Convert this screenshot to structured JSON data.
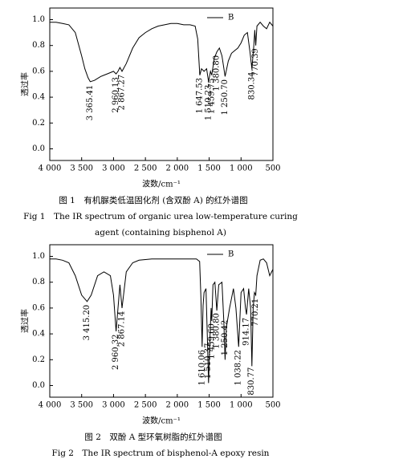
{
  "chart_data": [
    {
      "type": "line",
      "x_label": "波数/cm⁻¹",
      "y_label": "透过率",
      "caption": [
        "图 1　有机脲类低温固化剂 (含双酚 A) 的红外谱图",
        "Fig 1　The IR spectrum of organic urea low-temperature curing",
        "agent (containing bisphenol A)"
      ],
      "x": [
        4000,
        3900,
        3800,
        3700,
        3600,
        3500,
        3450,
        3400,
        3365,
        3300,
        3200,
        3100,
        3000,
        2960,
        2930,
        2900,
        2867,
        2800,
        2700,
        2600,
        2500,
        2400,
        2300,
        2200,
        2100,
        2000,
        1900,
        1800,
        1720,
        1680,
        1647,
        1620,
        1580,
        1540,
        1510,
        1480,
        1459,
        1420,
        1380,
        1340,
        1300,
        1250,
        1200,
        1150,
        1100,
        1050,
        1000,
        950,
        900,
        860,
        830,
        800,
        785,
        770,
        750,
        700,
        650,
        600,
        550,
        500
      ],
      "series": [
        {
          "name": "B",
          "color": "#000000",
          "values": [
            0.98,
            0.98,
            0.97,
            0.96,
            0.9,
            0.72,
            0.62,
            0.55,
            0.52,
            0.53,
            0.56,
            0.58,
            0.6,
            0.58,
            0.6,
            0.63,
            0.6,
            0.66,
            0.78,
            0.86,
            0.9,
            0.93,
            0.95,
            0.96,
            0.97,
            0.97,
            0.96,
            0.96,
            0.95,
            0.85,
            0.57,
            0.62,
            0.6,
            0.62,
            0.52,
            0.6,
            0.57,
            0.7,
            0.75,
            0.78,
            0.72,
            0.56,
            0.68,
            0.74,
            0.76,
            0.78,
            0.82,
            0.88,
            0.9,
            0.75,
            0.62,
            0.8,
            0.92,
            0.8,
            0.95,
            0.98,
            0.95,
            0.93,
            0.98,
            0.95
          ]
        }
      ],
      "annotations": [
        {
          "text": "3 365.41",
          "x": 3365.41
        },
        {
          "text": "2 960.13",
          "x": 2960.13
        },
        {
          "text": "2 867.27",
          "x": 2867.27
        },
        {
          "text": "1 647.53",
          "x": 1647.53
        },
        {
          "text": "1 510.23",
          "x": 1510.23
        },
        {
          "text": "1 459.75",
          "x": 1459.75
        },
        {
          "text": "1 380.80",
          "x": 1380.8
        },
        {
          "text": "1 250.70",
          "x": 1250.7
        },
        {
          "text": "830.34",
          "x": 830.34
        },
        {
          "text": "770.39",
          "x": 770.39
        }
      ],
      "xlim": [
        4000,
        500
      ],
      "xticks": [
        {
          "value": 4000,
          "label": "4 000"
        },
        {
          "value": 3500,
          "label": "3 500"
        },
        {
          "value": 3000,
          "label": "3 000"
        },
        {
          "value": 2500,
          "label": "2 500"
        },
        {
          "value": 2000,
          "label": "2 000"
        },
        {
          "value": 1500,
          "label": "1 500"
        },
        {
          "value": 1000,
          "label": "1 000"
        },
        500
      ],
      "ylim": [
        -0.09,
        1.09
      ],
      "yticks": [
        {
          "value": 0,
          "label": "0.0"
        },
        0.2,
        0.4,
        0.6,
        0.8,
        {
          "value": 1,
          "label": "1.0"
        }
      ],
      "legend": "upper right"
    },
    {
      "type": "line",
      "x_label": "波数/cm⁻¹",
      "y_label": "透过率",
      "caption": [
        "图 2　双酚 A 型环氧树脂的红外谱图",
        "Fig 2　The IR spectrum of bisphenol-A epoxy resin"
      ],
      "x": [
        4000,
        3900,
        3800,
        3700,
        3600,
        3500,
        3415,
        3350,
        3250,
        3150,
        3050,
        3000,
        2960,
        2930,
        2900,
        2867,
        2800,
        2700,
        2600,
        2400,
        2200,
        2000,
        1800,
        1700,
        1650,
        1630,
        1610,
        1595,
        1580,
        1550,
        1530,
        1510,
        1490,
        1470,
        1459,
        1440,
        1410,
        1380,
        1350,
        1300,
        1270,
        1250,
        1230,
        1180,
        1120,
        1080,
        1038,
        1000,
        960,
        930,
        914,
        880,
        850,
        830,
        810,
        790,
        770,
        750,
        700,
        650,
        600,
        550,
        500
      ],
      "series": [
        {
          "name": "B",
          "color": "#000000",
          "values": [
            0.98,
            0.98,
            0.97,
            0.95,
            0.85,
            0.7,
            0.65,
            0.7,
            0.85,
            0.88,
            0.85,
            0.7,
            0.42,
            0.6,
            0.78,
            0.6,
            0.88,
            0.95,
            0.97,
            0.98,
            0.98,
            0.98,
            0.98,
            0.98,
            0.96,
            0.7,
            0.3,
            0.62,
            0.72,
            0.75,
            0.4,
            0.02,
            0.35,
            0.6,
            0.5,
            0.78,
            0.8,
            0.58,
            0.78,
            0.8,
            0.5,
            0.2,
            0.45,
            0.6,
            0.75,
            0.6,
            0.3,
            0.72,
            0.75,
            0.6,
            0.55,
            0.75,
            0.6,
            0.15,
            0.6,
            0.72,
            0.7,
            0.85,
            0.97,
            0.98,
            0.95,
            0.85,
            0.9
          ]
        }
      ],
      "annotations": [
        {
          "text": "3 415.20",
          "x": 3415.2
        },
        {
          "text": "2 960.32",
          "x": 2960.32
        },
        {
          "text": "2 867.14",
          "x": 2867.14
        },
        {
          "text": "1 610.06",
          "x": 1610.06
        },
        {
          "text": "1 510.37",
          "x": 1510.37
        },
        {
          "text": "1 459.60",
          "x": 1459.6
        },
        {
          "text": "1 380.80",
          "x": 1380.8
        },
        {
          "text": "1 250.42",
          "x": 1250.42
        },
        {
          "text": "1 038.22",
          "x": 1038.22
        },
        {
          "text": "914.17",
          "x": 914.17
        },
        {
          "text": "830.77",
          "x": 830.77
        },
        {
          "text": "770.21",
          "x": 770.21
        }
      ],
      "xlim": [
        4000,
        500
      ],
      "xticks": [
        {
          "value": 4000,
          "label": "4 000"
        },
        {
          "value": 3500,
          "label": "3 500"
        },
        {
          "value": 3000,
          "label": "3 000"
        },
        {
          "value": 2500,
          "label": "2 500"
        },
        {
          "value": 2000,
          "label": "2 000"
        },
        {
          "value": 1500,
          "label": "1 500"
        },
        {
          "value": 1000,
          "label": "1 000"
        },
        500
      ],
      "ylim": [
        -0.09,
        1.09
      ],
      "yticks": [
        {
          "value": 0,
          "label": "0.0"
        },
        0.2,
        0.4,
        0.6,
        0.8,
        {
          "value": 1,
          "label": "1.0"
        }
      ],
      "legend": "upper right"
    }
  ]
}
